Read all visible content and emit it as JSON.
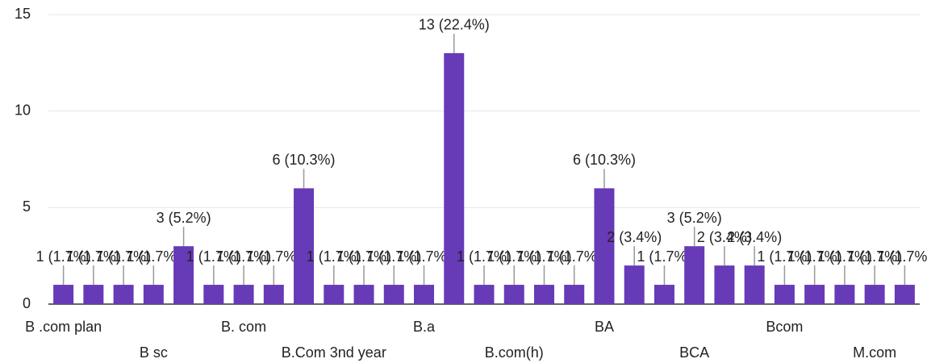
{
  "chart_data": {
    "type": "bar",
    "categories": [
      "B .com plan",
      null,
      null,
      "B sc",
      null,
      null,
      "B. com",
      null,
      null,
      "B.Com 3nd year",
      null,
      null,
      "B.a",
      null,
      null,
      "B.com(h)",
      null,
      null,
      "BA",
      null,
      null,
      "BCA",
      null,
      null,
      "Bcom",
      null,
      null,
      "M.com",
      null
    ],
    "values": [
      1,
      1,
      1,
      1,
      3,
      1,
      1,
      1,
      6,
      1,
      1,
      1,
      1,
      13,
      1,
      1,
      1,
      1,
      6,
      2,
      1,
      3,
      2,
      2,
      1,
      1,
      1,
      1,
      1
    ],
    "value_labels": [
      "1 (1.7%)",
      "1 (1.7%)",
      "1 (1.7%)",
      "1 (1.7%)",
      "3 (5.2%)",
      "1 (1.7%)",
      "1 (1.7%)",
      "1 (1.7%)",
      "6 (10.3%)",
      "1 (1.7%)",
      "1 (1.7%)",
      "1 (1.7%)",
      "1 (1.7%)",
      "13 (22.4%)",
      "1 (1.7%)",
      "1 (1.7%)",
      "1 (1.7%)",
      "1 (1.7%)",
      "6 (10.3%)",
      "2 (3.4%)",
      "1 (1.7%)",
      "3 (5.2%)",
      "2 (3.4%)",
      "2 (3.4%)",
      "1 (1.7%)",
      "1 (1.7%)",
      "1 (1.7%)",
      "1 (1.7%)",
      "1 (1.7%)"
    ],
    "color": "#673ab7",
    "ylim": [
      0,
      15
    ],
    "yticks": [
      0,
      5,
      10,
      15
    ],
    "grid": true
  }
}
